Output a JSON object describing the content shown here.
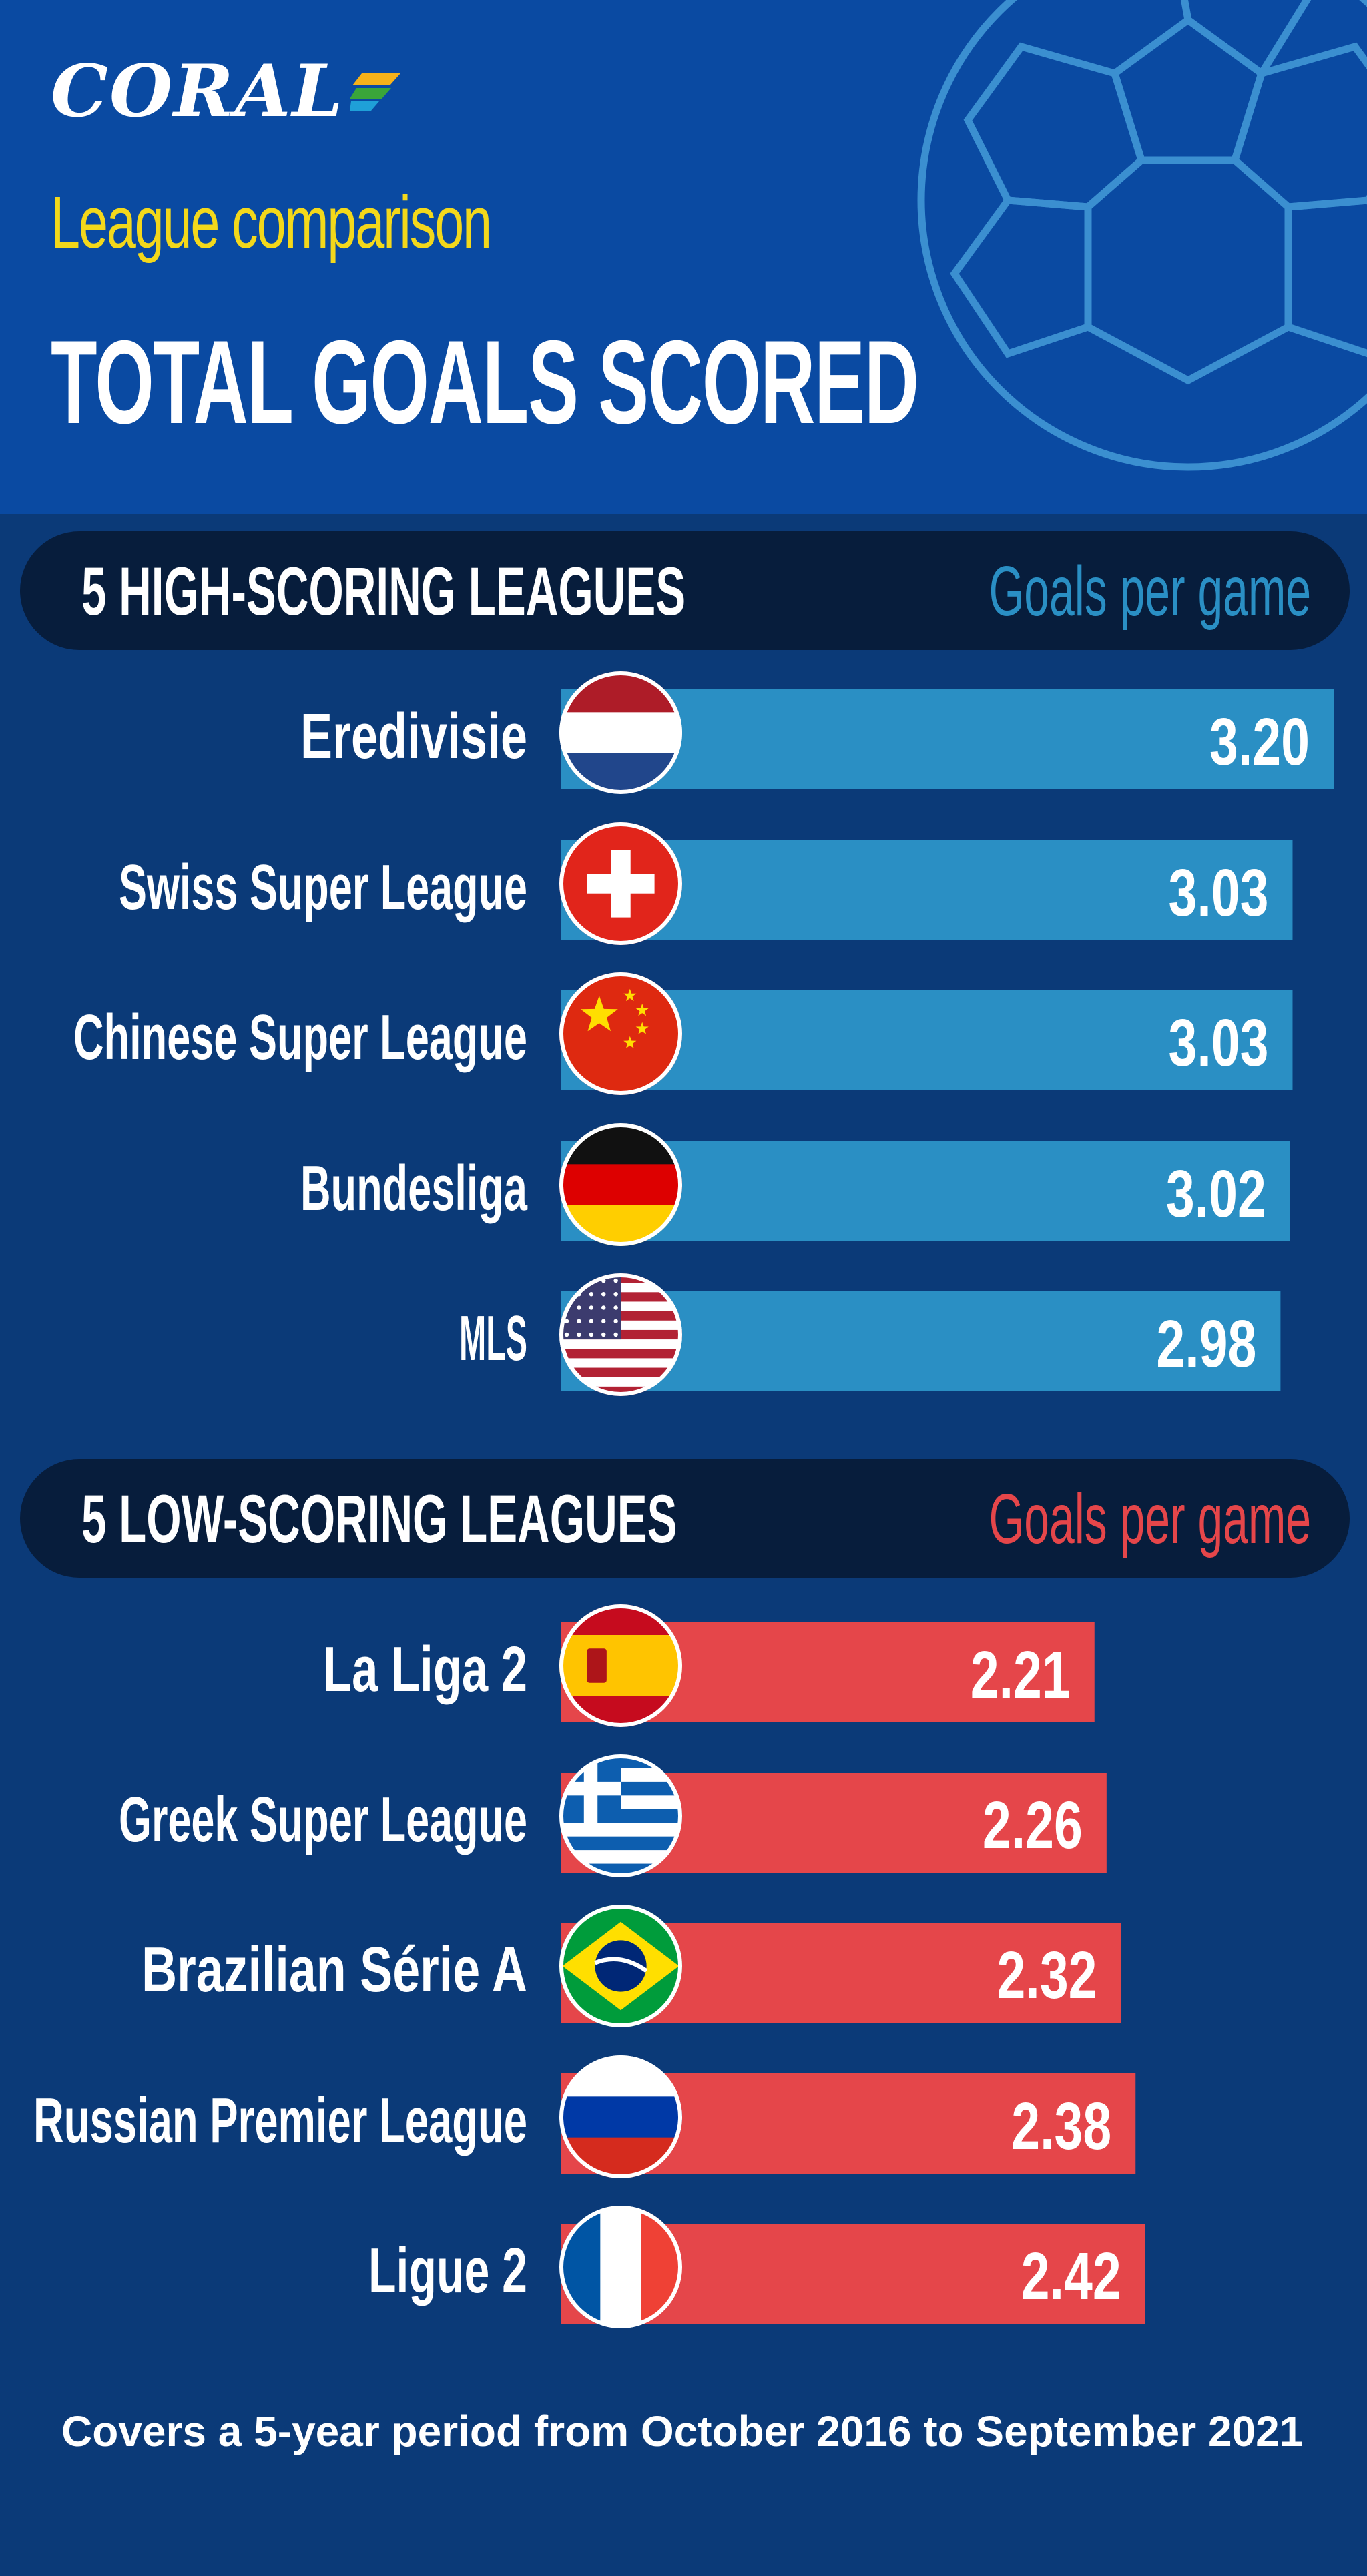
{
  "brand": {
    "name": "CORAL"
  },
  "header": {
    "subtitle": "League comparison",
    "title": "TOTAL GOALS SCORED"
  },
  "sections": {
    "high": {
      "title": "5 HIGH-SCORING LEAGUES",
      "unit_label": "Goals per game"
    },
    "low": {
      "title": "5 LOW-SCORING LEAGUES",
      "unit_label": "Goals per game"
    }
  },
  "colors": {
    "background": "#0b3a78",
    "header_background": "#0a4aa2",
    "high_bar": "#2a8fc4",
    "low_bar": "#e5464a",
    "subtitle": "#f3d81b"
  },
  "chart_data": [
    {
      "type": "bar",
      "orientation": "horizontal",
      "title": "5 HIGH-SCORING LEAGUES",
      "value_label": "Goals per game",
      "categories": [
        "Eredivisie",
        "Swiss Super League",
        "Chinese Super League",
        "Bundesliga",
        "MLS"
      ],
      "values": [
        3.2,
        3.03,
        3.03,
        3.02,
        2.98
      ],
      "value_labels": [
        "3.20",
        "3.03",
        "3.03",
        "3.02",
        "2.98"
      ],
      "flags": [
        "netherlands-flag-icon",
        "switzerland-flag-icon",
        "china-flag-icon",
        "germany-flag-icon",
        "usa-flag-icon"
      ],
      "color": "#2a8fc4"
    },
    {
      "type": "bar",
      "orientation": "horizontal",
      "title": "5 LOW-SCORING LEAGUES",
      "value_label": "Goals per game",
      "categories": [
        "La Liga 2",
        "Greek Super League",
        "Brazilian Série A",
        "Russian Premier League",
        "Ligue 2"
      ],
      "values": [
        2.21,
        2.26,
        2.32,
        2.38,
        2.42
      ],
      "value_labels": [
        "2.21",
        "2.26",
        "2.32",
        "2.38",
        "2.42"
      ],
      "flags": [
        "spain-flag-icon",
        "greece-flag-icon",
        "brazil-flag-icon",
        "russia-flag-icon",
        "france-flag-icon"
      ],
      "color": "#e5464a"
    }
  ],
  "footnote": "Covers a 5-year period from October 2016 to September 2021"
}
